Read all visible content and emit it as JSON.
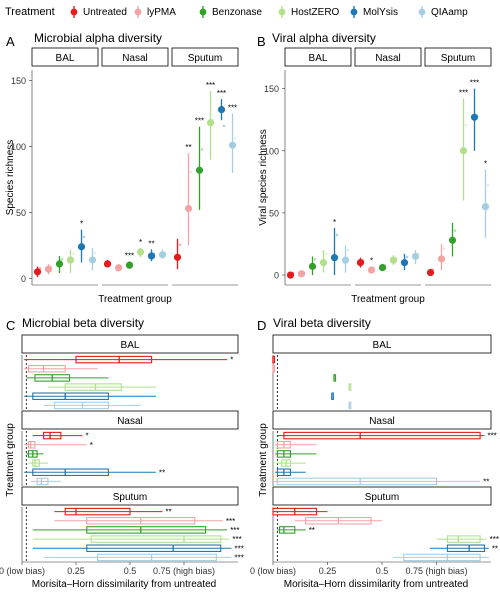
{
  "legend": {
    "title": "Treatment",
    "items": [
      {
        "label": "Untreated",
        "color": "#e41a1c"
      },
      {
        "label": "lyPMA",
        "color": "#f4a3a5"
      },
      {
        "label": "Benzonase",
        "color": "#33a02c"
      },
      {
        "label": "HostZERO",
        "color": "#b2df8a"
      },
      {
        "label": "MolYsis",
        "color": "#1f78b4"
      },
      {
        "label": "QIAamp",
        "color": "#a6cee3"
      }
    ]
  },
  "chart_data": [
    {
      "panel": "A",
      "type": "scatter",
      "title": "Microbial alpha diversity",
      "xlabel": "Treatment group",
      "ylabel": "Species richness",
      "ylim": [
        -5,
        158
      ],
      "yticks": [
        0,
        50,
        100,
        150
      ],
      "facets": [
        {
          "label": "BAL",
          "values": [
            5,
            7,
            11,
            14,
            24,
            14
          ],
          "lo": [
            1,
            3,
            4,
            4,
            12,
            6
          ],
          "hi": [
            9,
            11,
            17,
            22,
            37,
            23
          ],
          "sig": [
            "",
            "",
            "",
            "",
            "*",
            ""
          ]
        },
        {
          "label": "Nasal",
          "values": [
            11,
            8,
            10,
            20,
            17,
            18
          ],
          "lo": [
            9,
            6,
            8,
            16,
            13,
            15
          ],
          "hi": [
            14,
            11,
            13,
            23,
            22,
            22
          ],
          "sig": [
            "",
            "",
            "***",
            "*",
            "**",
            ""
          ]
        },
        {
          "label": "Sputum",
          "values": [
            16,
            53,
            82,
            118,
            128,
            101
          ],
          "lo": [
            7,
            25,
            52,
            90,
            120,
            80
          ],
          "hi": [
            30,
            95,
            115,
            142,
            136,
            125
          ],
          "sig": [
            "",
            "**",
            "***",
            "***",
            "***",
            "***"
          ]
        }
      ]
    },
    {
      "panel": "B",
      "type": "scatter",
      "title": "Viral alpha diversity",
      "xlabel": "Treatment group",
      "ylabel": "Viral species richness",
      "ylim": [
        -8,
        165
      ],
      "yticks": [
        0,
        50,
        100,
        150
      ],
      "facets": [
        {
          "label": "BAL",
          "values": [
            0,
            1,
            7,
            10,
            14,
            12
          ],
          "lo": [
            0,
            0,
            0,
            2,
            0,
            2
          ],
          "hi": [
            2,
            3,
            15,
            20,
            38,
            24
          ],
          "sig": [
            "",
            "",
            "",
            "",
            "*",
            ""
          ]
        },
        {
          "label": "Nasal",
          "values": [
            10,
            4,
            6,
            12,
            10,
            15
          ],
          "lo": [
            6,
            2,
            4,
            8,
            4,
            9
          ],
          "hi": [
            14,
            7,
            9,
            16,
            17,
            20
          ],
          "sig": [
            "",
            "*",
            "",
            "",
            "",
            ""
          ]
        },
        {
          "label": "Sputum",
          "values": [
            2,
            13,
            28,
            100,
            127,
            55
          ],
          "lo": [
            0,
            4,
            15,
            60,
            100,
            30
          ],
          "hi": [
            5,
            25,
            42,
            142,
            150,
            85
          ],
          "sig": [
            "",
            "",
            "",
            "***",
            "***",
            "*"
          ]
        }
      ]
    },
    {
      "panel": "C",
      "type": "box",
      "title": "Microbial beta diversity",
      "xlabel": "Morisita–Horn dissimilarity from untreated",
      "ylabel": "Treatment group",
      "xlim": [
        0,
        1
      ],
      "xtick_labels": [
        "0 (low bias)",
        "0.25",
        "0.5",
        "0.75 (high bias)"
      ],
      "facets": [
        {
          "label": "BAL",
          "boxes": [
            [
              0.01,
              0.25,
              0.45,
              0.6,
              0.95
            ],
            [
              0.01,
              0.03,
              0.1,
              0.2,
              0.35
            ],
            [
              0.02,
              0.06,
              0.14,
              0.22,
              0.4
            ],
            [
              0.12,
              0.2,
              0.34,
              0.46,
              0.62
            ],
            [
              0.01,
              0.05,
              0.2,
              0.4,
              0.62
            ],
            [
              0.1,
              0.15,
              0.28,
              0.4,
              0.55
            ]
          ],
          "sig": [
            "*",
            "",
            "",
            "",
            "",
            ""
          ]
        },
        {
          "label": "Nasal",
          "boxes": [
            [
              0.05,
              0.1,
              0.13,
              0.18,
              0.28
            ],
            [
              0.01,
              0.03,
              0.04,
              0.06,
              0.3
            ],
            [
              0.02,
              0.03,
              0.05,
              0.07,
              0.1
            ],
            [
              0.03,
              0.05,
              0.06,
              0.08,
              0.12
            ],
            [
              0.01,
              0.05,
              0.2,
              0.4,
              0.62
            ],
            [
              0.04,
              0.07,
              0.09,
              0.12,
              0.18
            ]
          ],
          "sig": [
            "*",
            "*",
            "",
            "",
            "**",
            ""
          ]
        },
        {
          "label": "Sputum",
          "boxes": [
            [
              0.15,
              0.2,
              0.25,
              0.5,
              0.65
            ],
            [
              0.15,
              0.3,
              0.55,
              0.8,
              0.93
            ],
            [
              0.05,
              0.3,
              0.55,
              0.85,
              0.95
            ],
            [
              0.05,
              0.32,
              0.75,
              0.92,
              0.96
            ],
            [
              0.05,
              0.3,
              0.7,
              0.92,
              0.97
            ],
            [
              0.1,
              0.35,
              0.6,
              0.9,
              0.97
            ]
          ],
          "sig": [
            "**",
            "***",
            "***",
            "***",
            "***",
            "***"
          ]
        }
      ]
    },
    {
      "panel": "D",
      "type": "box",
      "title": "Viral beta diversity",
      "xlabel": "Morisita–Horn dissimilarity from untreated",
      "ylabel": "Treatment group",
      "xlim": [
        0,
        1
      ],
      "xtick_labels": [
        "0 (low bias)",
        "0.25",
        "0.5",
        "0.75 (high bias)"
      ],
      "facets": [
        {
          "label": "BAL",
          "boxes": [
            [
              0.0,
              0.0,
              0.0,
              0.0,
              0.0
            ],
            [
              0.0,
              0.0,
              0.0,
              0.0,
              0.0
            ],
            [
              0.28,
              0.28,
              0.28,
              0.28,
              0.28
            ],
            [
              0.35,
              0.35,
              0.35,
              0.35,
              0.35
            ],
            [
              0.27,
              0.27,
              0.27,
              0.27,
              0.27
            ],
            [
              0.35,
              0.35,
              0.35,
              0.35,
              0.35
            ]
          ],
          "sig": [
            "",
            "",
            "",
            "",
            "",
            ""
          ]
        },
        {
          "label": "Nasal",
          "boxes": [
            [
              0.02,
              0.05,
              0.4,
              0.95,
              0.97
            ],
            [
              0.01,
              0.02,
              0.05,
              0.08,
              0.2
            ],
            [
              0.01,
              0.02,
              0.05,
              0.08,
              0.2
            ],
            [
              0.02,
              0.04,
              0.06,
              0.08,
              0.15
            ],
            [
              0.01,
              0.02,
              0.05,
              0.08,
              0.15
            ],
            [
              0.0,
              0.02,
              0.4,
              0.75,
              0.95
            ]
          ],
          "sig": [
            "***",
            "",
            "",
            "",
            "",
            "**"
          ]
        },
        {
          "label": "Sputum",
          "boxes": [
            [
              0.0,
              0.0,
              0.1,
              0.2,
              0.25
            ],
            [
              0.1,
              0.15,
              0.3,
              0.45,
              0.5
            ],
            [
              0.02,
              0.03,
              0.05,
              0.1,
              0.15
            ],
            [
              0.75,
              0.8,
              0.85,
              0.95,
              0.98
            ],
            [
              0.72,
              0.8,
              0.9,
              0.97,
              0.99
            ],
            [
              0.55,
              0.6,
              0.8,
              0.95,
              0.99
            ]
          ],
          "sig": [
            "",
            "",
            "**",
            "***",
            "**",
            ""
          ]
        }
      ]
    }
  ]
}
